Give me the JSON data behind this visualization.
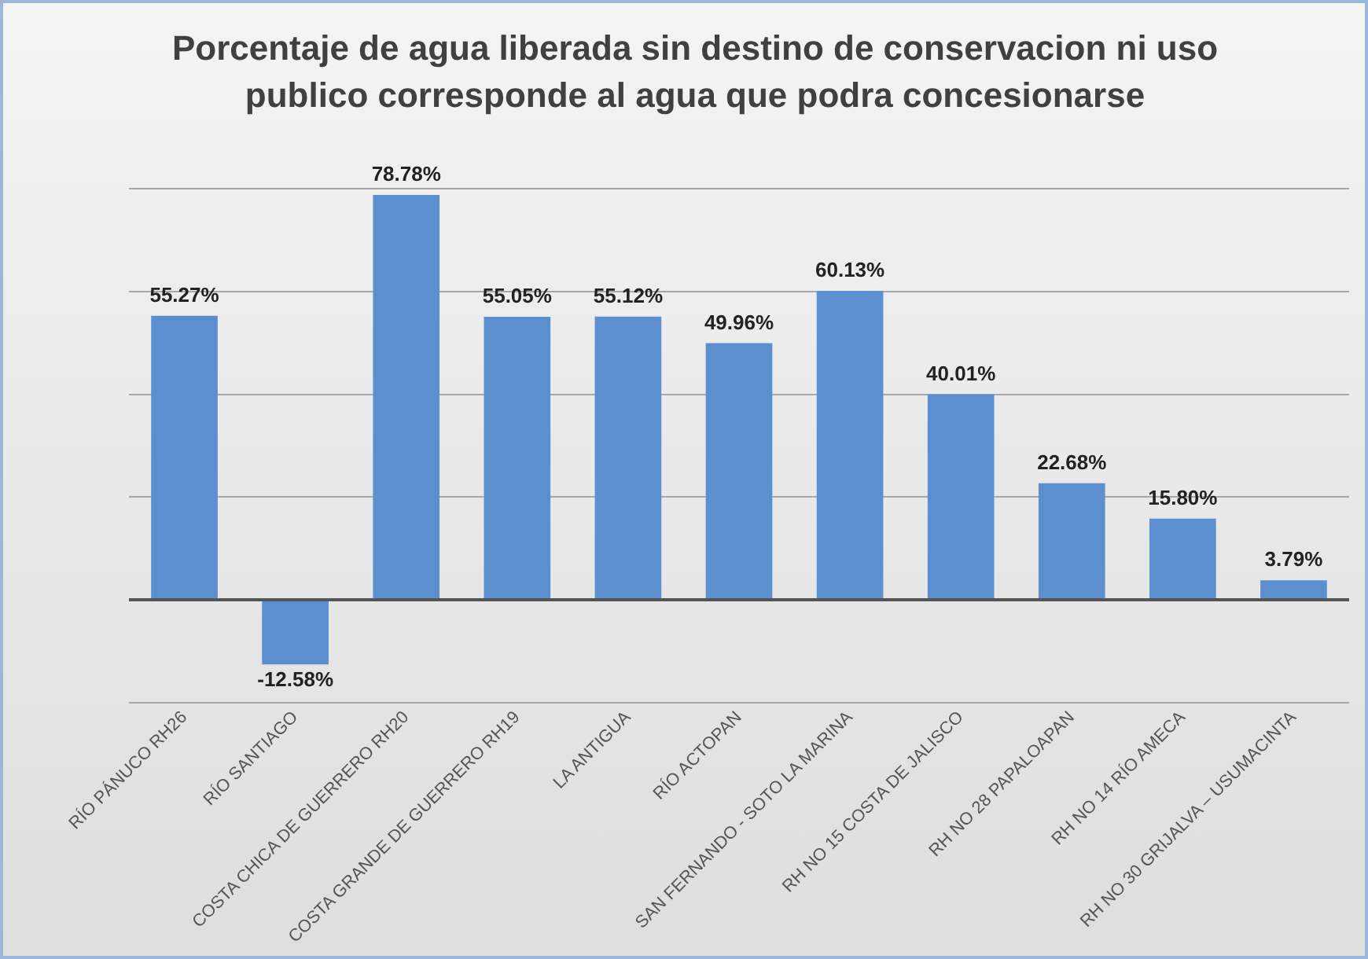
{
  "chart_data": {
    "type": "bar",
    "title": "Porcentaje de agua liberada sin destino de conservacion ni uso publico  corresponde al agua que podra concesionarse",
    "categories": [
      "RÍO PÁNUCO RH26",
      "RÍO SANTIAGO",
      "COSTA CHICA DE GUERRERO RH20",
      "COSTA GRANDE DE GUERRERO RH19",
      "LA ANTIGUA",
      "RÍO ACTOPAN",
      "SAN FERNANDO - SOTO LA MARINA",
      "RH NO 15 COSTA DE JALISCO",
      "RH NO 28 PAPALOAPAN",
      "RH NO 14 RÍO AMECA",
      "RH NO 30 GRIJALVA – USUMACINTA"
    ],
    "values": [
      55.27,
      -12.58,
      78.78,
      55.05,
      55.12,
      49.96,
      60.13,
      40.01,
      22.68,
      15.8,
      3.79
    ],
    "value_labels": [
      "55.27%",
      "-12.58%",
      "78.78%",
      "55.05%",
      "55.12%",
      "49.96%",
      "60.13%",
      "40.01%",
      "22.68%",
      "15.80%",
      "3.79%"
    ],
    "color": "#5b8fd0",
    "ylim": [
      -20,
      80
    ],
    "yticks": [
      {
        "value": -20,
        "label": null
      },
      {
        "value": 0,
        "label": null
      },
      {
        "value": 20,
        "label": null
      },
      {
        "value": 40,
        "label": null
      },
      {
        "value": 60,
        "label": null
      },
      {
        "value": 80,
        "label": null
      }
    ],
    "tick_labels": "x",
    "grid": "y"
  }
}
